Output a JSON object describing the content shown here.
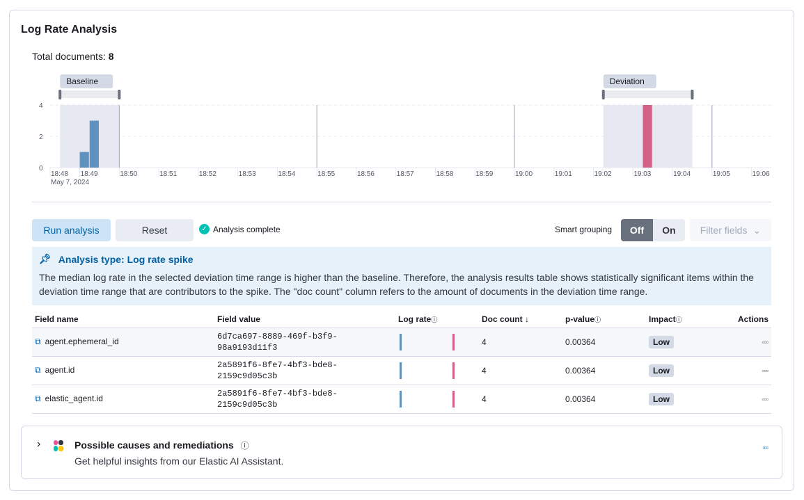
{
  "title": "Log Rate Analysis",
  "total_label": "Total documents:",
  "total_value": "8",
  "chart_data": {
    "type": "bar",
    "x_ticks": [
      "18:48",
      "18:49",
      "18:50",
      "18:51",
      "18:52",
      "18:53",
      "18:54",
      "18:55",
      "18:56",
      "18:57",
      "18:58",
      "18:59",
      "19:00",
      "19:01",
      "19:02",
      "19:03",
      "19:04",
      "19:05",
      "19:06"
    ],
    "x_sublabel": "May 7, 2024",
    "y_ticks": [
      0,
      2,
      4
    ],
    "ylim": [
      0,
      4
    ],
    "series": [
      {
        "color": "#6092c0",
        "points": [
          {
            "x": "18:49:00",
            "y": 1
          },
          {
            "x": "18:49:15",
            "y": 3
          }
        ]
      },
      {
        "color": "#d36086",
        "points": [
          {
            "x": "19:03:15",
            "y": 4
          }
        ]
      }
    ],
    "baseline": {
      "label": "Baseline",
      "start": "18:48:30",
      "end": "18:50:00"
    },
    "deviation": {
      "label": "Deviation",
      "start": "19:02:15",
      "end": "19:04:30"
    }
  },
  "controls": {
    "run": "Run analysis",
    "reset": "Reset",
    "status": "Analysis complete",
    "smart_grouping": "Smart grouping",
    "off": "Off",
    "on": "On",
    "filter": "Filter fields"
  },
  "callout": {
    "title": "Analysis type: Log rate spike",
    "body": "The median log rate in the selected deviation time range is higher than the baseline. Therefore, the analysis results table shows statistically significant items within the deviation time range that are contributors to the spike. The \"doc count\" column refers to the amount of documents in the deviation time range."
  },
  "table": {
    "headers": [
      "Field name",
      "Field value",
      "Log rate",
      "Doc count",
      "p-value",
      "Impact",
      "Actions"
    ],
    "rows": [
      {
        "field": "agent.ephemeral_id",
        "value": "6d7ca697-8889-469f-b3f9-98a9193d11f3",
        "doc_count": "4",
        "p_value": "0.00364",
        "impact": "Low"
      },
      {
        "field": "agent.id",
        "value": "2a5891f6-8fe7-4bf3-bde8-2159c9d05c3b",
        "doc_count": "4",
        "p_value": "0.00364",
        "impact": "Low"
      },
      {
        "field": "elastic_agent.id",
        "value": "2a5891f6-8fe7-4bf3-bde8-2159c9d05c3b",
        "doc_count": "4",
        "p_value": "0.00364",
        "impact": "Low"
      }
    ]
  },
  "assistant": {
    "title": "Possible causes and remediations",
    "subtitle": "Get helpful insights from our Elastic AI Assistant."
  }
}
